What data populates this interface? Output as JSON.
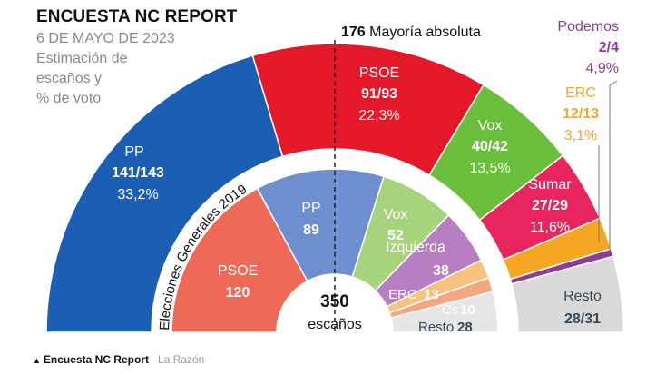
{
  "header": {
    "title": "ENCUESTA NC REPORT",
    "date": "6 DE MAYO DE 2023",
    "subtitle_lines": [
      "Estimación de",
      "escaños y",
      "% de voto"
    ]
  },
  "majority": {
    "number": "176",
    "label": "Mayoría absoluta"
  },
  "footer": {
    "survey": "Encuesta NC Report",
    "source": "La Razón"
  },
  "colors": {
    "PP": "#1a5fb4",
    "PSOE": "#e5182a",
    "Vox": "#6cbf3c",
    "Sumar": "#e8255c",
    "ERC": "#f5a623",
    "Podemos": "#8e3d96",
    "Resto": "#d9d9d9",
    "PP_2019": "#6e8fcf",
    "PSOE_2019": "#ee6a57",
    "Vox_2019": "#a6d37b",
    "Izquierda_2019": "#b77fc1",
    "ERC_2019": "#f6c27e",
    "Cs_2019": "#f4a882",
    "Resto_2019": "#e6e6e6"
  },
  "chart_data": [
    {
      "type": "pie",
      "name": "Encuesta NC Report 2023",
      "total_seats": 350,
      "series": [
        {
          "party": "PP",
          "seats_range": "141/143",
          "seats": 142,
          "vote": "33,2%"
        },
        {
          "party": "PSOE",
          "seats_range": "91/93",
          "seats": 92,
          "vote": "22,3%"
        },
        {
          "party": "Vox",
          "seats_range": "40/42",
          "seats": 41,
          "vote": "13,5%"
        },
        {
          "party": "Sumar",
          "seats_range": "27/29",
          "seats": 28,
          "vote": "11,6%"
        },
        {
          "party": "ERC",
          "seats_range": "12/13",
          "seats": 12.5,
          "vote": "3,1%"
        },
        {
          "party": "Podemos",
          "seats_range": "2/4",
          "seats": 3,
          "vote": "4,9%"
        },
        {
          "party": "Resto",
          "seats_range": "28/31",
          "seats": 29.5,
          "vote": ""
        }
      ]
    },
    {
      "type": "pie",
      "name": "Elecciones Generales 2019",
      "total_seats": 350,
      "center_value": "350",
      "center_label": "escaños",
      "series": [
        {
          "party": "PSOE",
          "seats": 120
        },
        {
          "party": "PP",
          "seats": 89
        },
        {
          "party": "Vox",
          "seats": 52
        },
        {
          "party": "Izquierda",
          "seats": 38
        },
        {
          "party": "ERC",
          "seats": 13
        },
        {
          "party": "Cs",
          "seats": 10
        },
        {
          "party": "Resto",
          "seats": 28
        }
      ]
    }
  ],
  "labels": {
    "outer": {
      "PP": {
        "name": "PP",
        "seats": "141/143",
        "vote": "33,2%"
      },
      "PSOE": {
        "name": "PSOE",
        "seats": "91/93",
        "vote": "22,3%"
      },
      "Vox": {
        "name": "Vox",
        "seats": "40/42",
        "vote": "13,5%"
      },
      "Sumar": {
        "name": "Sumar",
        "seats": "27/29",
        "vote": "11,6%"
      },
      "ERC": {
        "name": "ERC",
        "seats": "12/13",
        "vote": "3,1%"
      },
      "Podemos": {
        "name": "Podemos",
        "seats": "2/4",
        "vote": "4,9%"
      },
      "Resto": {
        "name": "Resto",
        "seats": "28/31"
      }
    },
    "inner": {
      "title": "Elecciones Generales 2019",
      "PP": {
        "name": "PP",
        "seats": "89"
      },
      "PSOE": {
        "name": "PSOE",
        "seats": "120"
      },
      "Vox": {
        "name": "Vox",
        "seats": "52"
      },
      "Izquierda": {
        "name": "Izquierda",
        "seats": "38"
      },
      "ERC": {
        "name": "ERC",
        "seats": "13"
      },
      "Cs": {
        "name": "Cs",
        "seats": "10"
      },
      "Resto": {
        "name": "Resto",
        "seats": "28"
      }
    }
  }
}
